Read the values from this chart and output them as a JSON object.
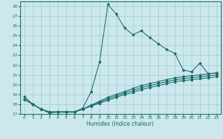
{
  "xlabel": "Humidex (Indice chaleur)",
  "bg_color": "#cce8ec",
  "grid_color": "#9fc9d0",
  "line_color": "#1a6b6b",
  "xlim": [
    -0.5,
    23.5
  ],
  "ylim": [
    17,
    28.5
  ],
  "xticks": [
    0,
    1,
    2,
    3,
    4,
    5,
    6,
    7,
    8,
    9,
    10,
    11,
    12,
    13,
    14,
    15,
    16,
    17,
    18,
    19,
    20,
    21,
    22,
    23
  ],
  "yticks": [
    17,
    18,
    19,
    20,
    21,
    22,
    23,
    24,
    25,
    26,
    27,
    28
  ],
  "line1_x": [
    0,
    1,
    2,
    3,
    4,
    5,
    6,
    7,
    8,
    9,
    10,
    11,
    12,
    13,
    14,
    15,
    16,
    17,
    18,
    19,
    20,
    21,
    22,
    23
  ],
  "line1_y": [
    18.8,
    18.0,
    17.5,
    17.1,
    17.2,
    17.2,
    17.2,
    17.6,
    19.3,
    22.3,
    28.2,
    27.2,
    25.8,
    25.1,
    25.5,
    24.8,
    24.2,
    23.6,
    23.2,
    21.5,
    21.3,
    22.2,
    21.1,
    21.2
  ],
  "line2_x": [
    0,
    1,
    2,
    3,
    4,
    5,
    6,
    7,
    8,
    9,
    10,
    11,
    12,
    13,
    14,
    15,
    16,
    17,
    18,
    19,
    20,
    21,
    22,
    23
  ],
  "line2_y": [
    18.5,
    18.0,
    17.5,
    17.2,
    17.2,
    17.2,
    17.2,
    17.5,
    17.9,
    18.3,
    18.7,
    19.0,
    19.3,
    19.6,
    19.9,
    20.1,
    20.3,
    20.5,
    20.7,
    20.8,
    20.9,
    21.0,
    21.1,
    21.2
  ],
  "line3_x": [
    0,
    1,
    2,
    3,
    4,
    5,
    6,
    7,
    8,
    9,
    10,
    11,
    12,
    13,
    14,
    15,
    16,
    17,
    18,
    19,
    20,
    21,
    22,
    23
  ],
  "line3_y": [
    18.5,
    18.0,
    17.5,
    17.2,
    17.2,
    17.2,
    17.2,
    17.5,
    17.8,
    18.1,
    18.4,
    18.7,
    19.0,
    19.2,
    19.5,
    19.7,
    19.9,
    20.1,
    20.3,
    20.4,
    20.5,
    20.6,
    20.7,
    20.8
  ],
  "line4_x": [
    0,
    1,
    2,
    3,
    4,
    5,
    6,
    7,
    8,
    9,
    10,
    11,
    12,
    13,
    14,
    15,
    16,
    17,
    18,
    19,
    20,
    21,
    22,
    23
  ],
  "line4_y": [
    18.5,
    18.0,
    17.5,
    17.2,
    17.2,
    17.2,
    17.2,
    17.5,
    17.85,
    18.2,
    18.55,
    18.85,
    19.15,
    19.4,
    19.7,
    19.9,
    20.1,
    20.3,
    20.5,
    20.6,
    20.7,
    20.8,
    20.9,
    21.0
  ]
}
